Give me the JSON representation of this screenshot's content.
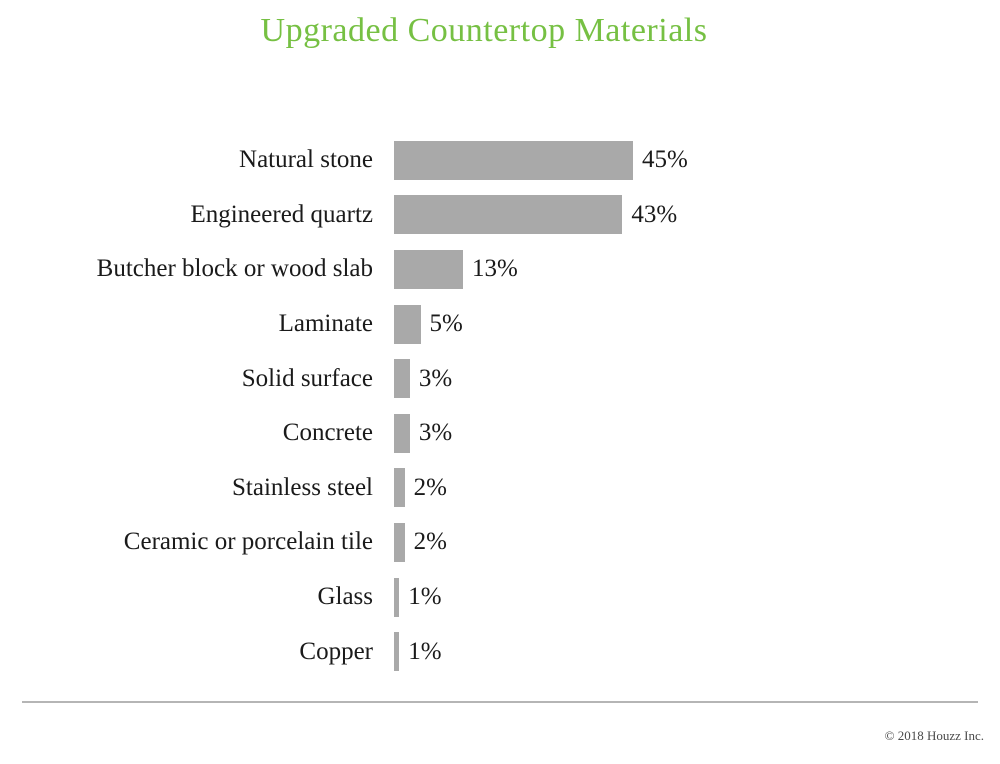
{
  "title": "Upgraded Countertop Materials",
  "footer": {
    "copyright": "© 2018 Houzz Inc."
  },
  "colors": {
    "title_green": "#76c043",
    "bar_gray": "#a9a9a9",
    "label_black": "#1a1a1a",
    "divider_gray": "#b5b5b5",
    "footer_gray": "#4a4a4a"
  },
  "chart_data": {
    "type": "bar",
    "orientation": "horizontal",
    "title": "Upgraded Countertop Materials",
    "categories": [
      "Natural stone",
      "Engineered quartz",
      "Butcher block or wood slab",
      "Laminate",
      "Solid surface",
      "Concrete",
      "Stainless steel",
      "Ceramic or porcelain tile",
      "Glass",
      "Copper"
    ],
    "values": [
      45,
      43,
      13,
      5,
      3,
      3,
      2,
      2,
      1,
      1
    ],
    "value_suffix": "%",
    "value_labels": [
      "45%",
      "43%",
      "13%",
      "5%",
      "3%",
      "3%",
      "2%",
      "2%",
      "1%",
      "1%"
    ],
    "xlabel": "",
    "ylabel": "",
    "xlim": [
      0,
      50
    ],
    "grid": false,
    "legend": false,
    "bar_color": "#a9a9a9",
    "title_color": "#76c043"
  }
}
